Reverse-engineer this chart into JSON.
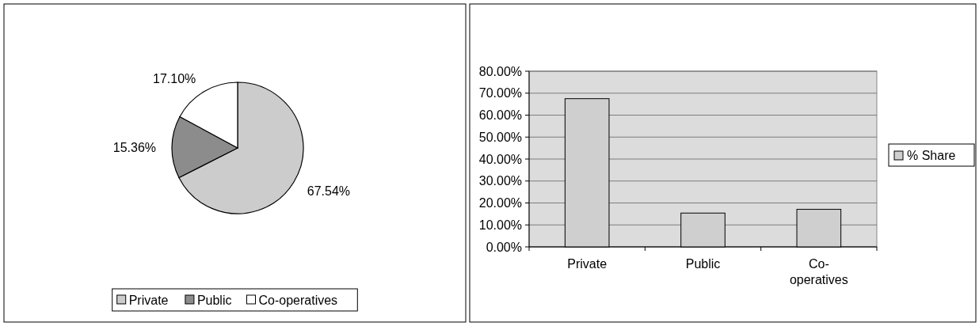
{
  "chart_data": [
    {
      "type": "pie",
      "categories": [
        "Private",
        "Public",
        "Co-operatives"
      ],
      "values": [
        67.54,
        15.36,
        17.1
      ],
      "colors": [
        "#cccccc",
        "#8c8c8c",
        "#ffffff"
      ],
      "value_labels": [
        "67.54%",
        "15.36%",
        "17.10%"
      ],
      "legend": "bottom"
    },
    {
      "type": "bar",
      "categories": [
        "Private",
        "Public",
        "Co-operatives"
      ],
      "series": [
        {
          "name": "% Share",
          "color": "#cfcfcf",
          "values": [
            67.5,
            15.4,
            17.1
          ]
        }
      ],
      "ylim": [
        0,
        80
      ],
      "yticks": [
        {
          "value": 0,
          "label": "0.00%"
        },
        {
          "value": 10,
          "label": "10.00%"
        },
        {
          "value": 20,
          "label": "20.00%"
        },
        {
          "value": 30,
          "label": "30.00%"
        },
        {
          "value": 40,
          "label": "40.00%"
        },
        {
          "value": 50,
          "label": "50.00%"
        },
        {
          "value": 60,
          "label": "60.00%"
        },
        {
          "value": 70,
          "label": "70.00%"
        },
        {
          "value": 80,
          "label": "80.00%"
        }
      ],
      "grid": "y",
      "legend": "right"
    }
  ]
}
